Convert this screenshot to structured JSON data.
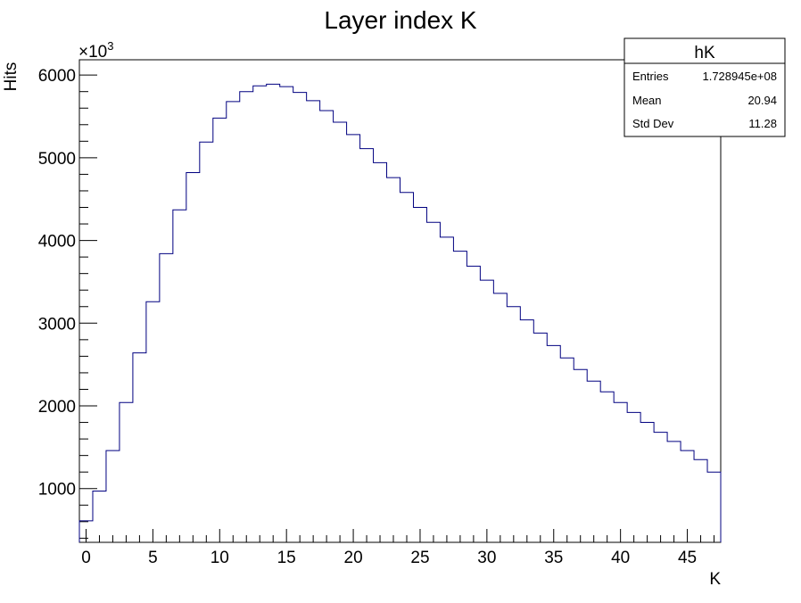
{
  "chart_data": {
    "type": "bar",
    "title": "Layer index K",
    "xlabel": "K",
    "ylabel": "Hits",
    "y_multiplier": "×10",
    "y_multiplier_exp": "3",
    "xlim": [
      -0.5,
      47.5
    ],
    "ylim": [
      350,
      6185
    ],
    "bin_width": 1,
    "x_ticks": [
      0,
      5,
      10,
      15,
      20,
      25,
      30,
      35,
      40,
      45
    ],
    "y_ticks": [
      1000,
      2000,
      3000,
      4000,
      5000,
      6000
    ],
    "line_color": "#000080",
    "values": [
      610,
      970,
      1460,
      2040,
      2640,
      3260,
      3840,
      4370,
      4820,
      5190,
      5480,
      5680,
      5800,
      5870,
      5890,
      5860,
      5790,
      5690,
      5570,
      5430,
      5280,
      5110,
      4940,
      4760,
      4580,
      4400,
      4220,
      4040,
      3870,
      3690,
      3520,
      3360,
      3200,
      3040,
      2880,
      2730,
      2580,
      2440,
      2300,
      2170,
      2040,
      1920,
      1800,
      1680,
      1570,
      1460,
      1350,
      1200
    ]
  },
  "stats": {
    "name": "hK",
    "rows": [
      {
        "label": "Entries",
        "value": "1.728945e+08"
      },
      {
        "label": "Mean",
        "value": "20.94"
      },
      {
        "label": "Std Dev",
        "value": "11.28"
      }
    ]
  }
}
